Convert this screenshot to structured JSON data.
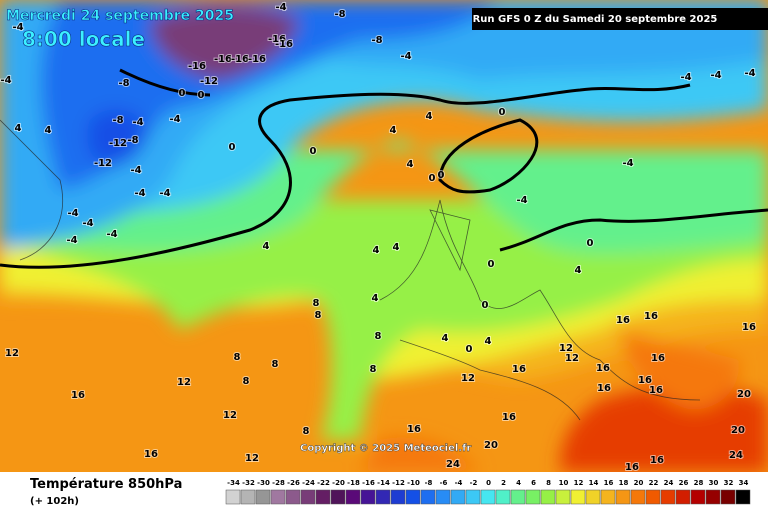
{
  "header": {
    "date": "Mercredi 24 septembre 2025",
    "time": "8:00 locale",
    "run": "Run GFS 0 Z du Samedi 20 septembre 2025"
  },
  "copyright": "Copyright © 2025 Meteociel.fr",
  "footer": {
    "title": "Température 850hPa",
    "subtitle": "(+ 102h)"
  },
  "colorbar": {
    "values": [
      -34,
      -32,
      -30,
      -28,
      -26,
      -24,
      -22,
      -20,
      -18,
      -16,
      -14,
      -12,
      -10,
      -8,
      -6,
      -4,
      -2,
      0,
      2,
      4,
      6,
      8,
      10,
      12,
      14,
      16,
      18,
      20,
      22,
      24,
      26,
      28,
      30,
      32,
      34
    ],
    "colors": [
      "#d2d2d2",
      "#b4b4b4",
      "#969696",
      "#a078a0",
      "#8c5a8c",
      "#783c78",
      "#641e64",
      "#50145a",
      "#5a0a78",
      "#461496",
      "#3228b4",
      "#1e3cd2",
      "#1450e6",
      "#1e6ef0",
      "#288cf5",
      "#32aaf5",
      "#3cc8f5",
      "#46e6f0",
      "#50f0c8",
      "#64f08c",
      "#78f064",
      "#96f046",
      "#c8f03c",
      "#f0f032",
      "#f0d228",
      "#f5b41e",
      "#f59614",
      "#f5780a",
      "#f05a00",
      "#e63c00",
      "#d21e00",
      "#b40000",
      "#960000",
      "#780000",
      "#000000"
    ]
  },
  "contour_labels": [
    -4,
    -8,
    -8,
    -16,
    -16,
    -16,
    -16,
    -16,
    -16,
    -12,
    -8,
    0,
    0,
    -4,
    -4,
    -4,
    -4,
    -4,
    -4,
    4,
    4,
    -8,
    -4,
    -12,
    -8,
    -12,
    -4,
    -4,
    0,
    0,
    4,
    4,
    0,
    4,
    0,
    0,
    -4,
    -4,
    -4,
    -4,
    -4,
    -4,
    -4,
    -4,
    0,
    4,
    4,
    4,
    0,
    4,
    0,
    4,
    8,
    8,
    8,
    16,
    16,
    16,
    12,
    12,
    16,
    8,
    8,
    8,
    4,
    0,
    4,
    12,
    12,
    16,
    16,
    16,
    16,
    16,
    16,
    20,
    16,
    12,
    8,
    16,
    20,
    12,
    16,
    24,
    16,
    16,
    24,
    20,
    12,
    8
  ]
}
